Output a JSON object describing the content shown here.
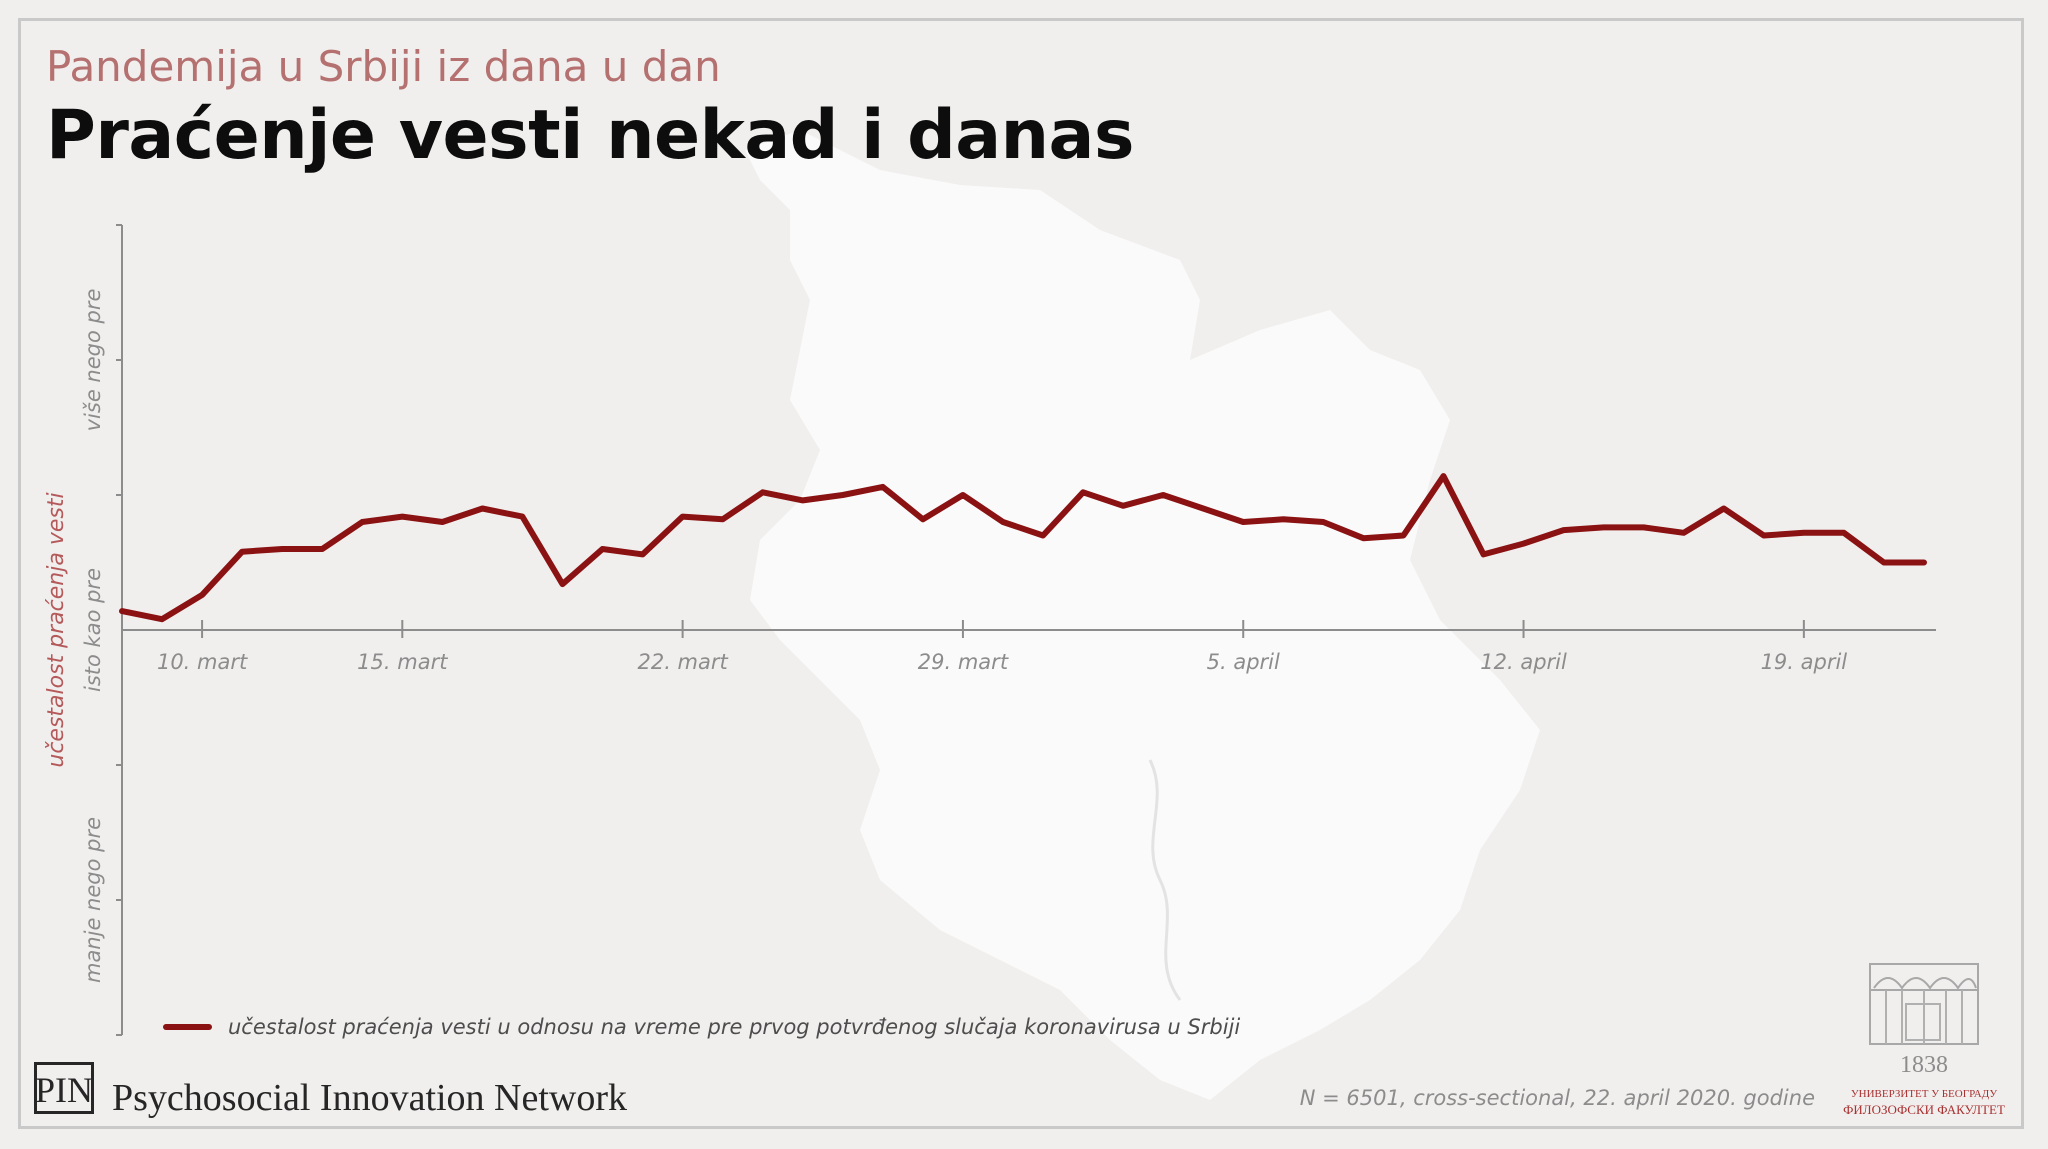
{
  "header": {
    "subtitle": "Pandemija u Srbiji iz dana u dan",
    "title": "Praćenje vesti nekad i danas"
  },
  "colors": {
    "line": "#8b1212",
    "accent_text": "#b57070",
    "axis": "#8c8c8c",
    "background": "#f1efee"
  },
  "chart_data": {
    "type": "line",
    "x_tick_labels": [
      "10. mart",
      "15. mart",
      "22. mart",
      "29. mart",
      "5. april",
      "12. april",
      "19. april"
    ],
    "x_tick_days": [
      1,
      6,
      13,
      20,
      27,
      34,
      41
    ],
    "x_range_days": [
      -1,
      44.3
    ],
    "y_category_labels": [
      {
        "label": "više nego pre",
        "value": 1
      },
      {
        "label": "isto kao pre",
        "value": 0
      },
      {
        "label": "manje nego pre",
        "value": -1
      }
    ],
    "ylim": [
      -1.5,
      1.5
    ],
    "ylabel": "učestalost praćenja vesti",
    "legend": {
      "position": "bottom-left",
      "label": "učestalost praćenja vesti u odnosu na vreme pre prvog potvrđenog slučaja koronavirusa u Srbiji"
    },
    "series": [
      {
        "name": "učestalost praćenja vesti u odnosu na vreme pre prvog potvrđenog slučaja koronavirusa u Srbiji",
        "x": [
          -1,
          0,
          1,
          2,
          3,
          4,
          5,
          6,
          7,
          8,
          9,
          10,
          11,
          12,
          13,
          14,
          15,
          16,
          17,
          18,
          19,
          20,
          21,
          22,
          23,
          24,
          25,
          26,
          27,
          28,
          29,
          30,
          31,
          32,
          33,
          34,
          35,
          36,
          37,
          38,
          39,
          40,
          41,
          42,
          43,
          44
        ],
        "y": [
          0.07,
          0.04,
          0.13,
          0.29,
          0.3,
          0.3,
          0.4,
          0.42,
          0.4,
          0.45,
          0.42,
          0.17,
          0.3,
          0.28,
          0.42,
          0.41,
          0.51,
          0.48,
          0.5,
          0.53,
          0.41,
          0.5,
          0.4,
          0.35,
          0.51,
          0.46,
          0.5,
          0.45,
          0.4,
          0.41,
          0.4,
          0.34,
          0.35,
          0.57,
          0.28,
          0.32,
          0.37,
          0.38,
          0.38,
          0.36,
          0.45,
          0.35,
          0.36,
          0.36,
          0.25,
          0.25
        ]
      }
    ]
  },
  "footer": {
    "org_logo_text": "PIN",
    "org_name": "Psychosocial Innovation Network",
    "note": "N = 6501, cross-sectional, 22. april 2020. godine",
    "uni_year": "1838",
    "uni_line1": "УНИВЕРЗИТЕТ У БЕОГРАДУ",
    "uni_line2": "ФИЛОЗОФСКИ ФАКУЛТЕТ"
  }
}
